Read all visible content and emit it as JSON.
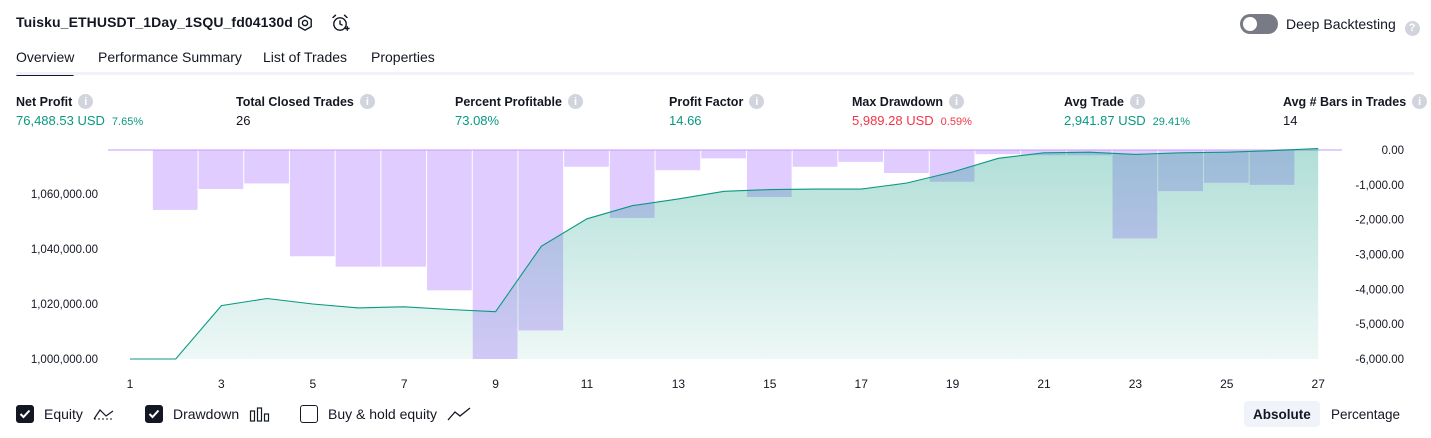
{
  "header": {
    "strategy_title": "Tuisku_ETHUSDT_1Day_1SQU_fd04130d",
    "settings_icon": "gear-icon",
    "alert_icon": "alarm-clock-plus-icon",
    "deep_backtesting_label": "Deep Backtesting",
    "deep_backtesting_enabled": false,
    "help_icon": "help-icon"
  },
  "tabs": [
    {
      "label": "Overview",
      "active": true
    },
    {
      "label": "Performance Summary",
      "active": false
    },
    {
      "label": "List of Trades",
      "active": false
    },
    {
      "label": "Properties",
      "active": false
    }
  ],
  "metrics": [
    {
      "label": "Net Profit",
      "value": "76,488.53 USD",
      "pct": "7.65%",
      "color": "#089981"
    },
    {
      "label": "Total Closed Trades",
      "value": "26",
      "pct": "",
      "color": "#131722"
    },
    {
      "label": "Percent Profitable",
      "value": "73.08%",
      "pct": "",
      "color": "#089981"
    },
    {
      "label": "Profit Factor",
      "value": "14.66",
      "pct": "",
      "color": "#089981"
    },
    {
      "label": "Max Drawdown",
      "value": "5,989.28 USD",
      "pct": "0.59%",
      "color": "#f23645"
    },
    {
      "label": "Avg Trade",
      "value": "2,941.87 USD",
      "pct": "29.41%",
      "color": "#089981"
    },
    {
      "label": "Avg # Bars in Trades",
      "value": "14",
      "pct": "",
      "color": "#131722"
    }
  ],
  "chart_data": {
    "type": "area",
    "x_ticks": [
      "1",
      "3",
      "5",
      "7",
      "9",
      "11",
      "13",
      "15",
      "17",
      "19",
      "21",
      "23",
      "25",
      "27"
    ],
    "y_left_ticks": [
      "1,000,000.00",
      "1,020,000.00",
      "1,040,000.00",
      "1,060,000.00"
    ],
    "y_left_range": [
      1000000,
      1076000
    ],
    "y_right_ticks": [
      "0.00",
      "-1,000.00",
      "-2,000.00",
      "-3,000.00",
      "-4,000.00",
      "-5,000.00",
      "-6,000.00"
    ],
    "y_right_range": [
      -6000,
      0
    ],
    "series": [
      {
        "name": "Equity",
        "color": "#089981",
        "x": [
          1,
          2,
          3,
          4,
          5,
          6,
          7,
          8,
          9,
          10,
          11,
          12,
          13,
          14,
          15,
          16,
          17,
          18,
          19,
          20,
          21,
          22,
          23,
          24,
          25,
          26,
          27
        ],
        "values": [
          1000000,
          1000000,
          1019400,
          1022000,
          1020000,
          1018600,
          1019000,
          1018000,
          1017200,
          1041000,
          1051000,
          1055800,
          1058200,
          1061000,
          1061600,
          1061800,
          1061800,
          1064000,
          1068000,
          1073000,
          1075000,
          1075200,
          1074400,
          1075000,
          1075200,
          1075800,
          1076500
        ]
      },
      {
        "name": "Drawdown",
        "color": "#c6a2ff",
        "x": [
          2,
          3,
          4,
          5,
          6,
          7,
          8,
          9,
          10,
          11,
          12,
          13,
          14,
          15,
          16,
          17,
          18,
          19,
          20,
          21,
          22,
          23,
          24,
          25,
          26
        ],
        "values": [
          -1720,
          -1120,
          -960,
          -3050,
          -3350,
          -3350,
          -4030,
          -6000,
          -5180,
          -480,
          -1950,
          -580,
          -240,
          -1350,
          -480,
          -340,
          -660,
          -910,
          -120,
          -150,
          -150,
          -2540,
          -1180,
          -940,
          -1000
        ]
      },
      {
        "name": "Buy & hold equity",
        "color": "#131722",
        "enabled": false,
        "x": [],
        "values": []
      }
    ]
  },
  "legend": {
    "equity_label": "Equity",
    "equity_checked": true,
    "equity_icon": "equity-line-icon",
    "drawdown_label": "Drawdown",
    "drawdown_checked": true,
    "drawdown_icon": "drawdown-bars-icon",
    "buyhold_label": "Buy & hold equity",
    "buyhold_checked": false,
    "buyhold_icon": "line-chart-icon"
  },
  "view_toggle": {
    "absolute_label": "Absolute",
    "percentage_label": "Percentage",
    "active": "absolute"
  }
}
